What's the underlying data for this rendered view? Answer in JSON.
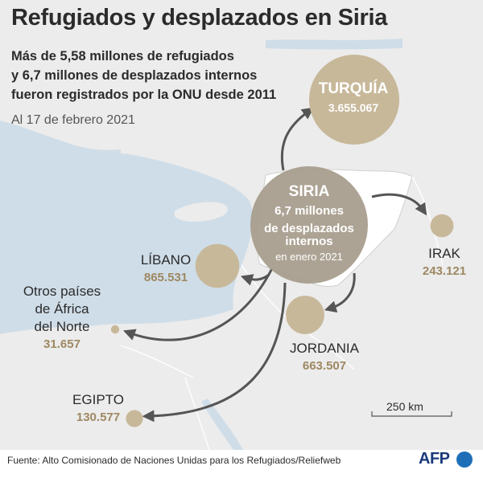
{
  "title": "Refugiados y desplazados en Siria",
  "subtitle_lines": [
    "Más de 5,58 millones de refugiados",
    "y 6,7 millones de desplazados internos",
    "fueron registrados por la ONU desde 2011"
  ],
  "date_note": "Al 17 de febrero 2021",
  "syria": {
    "name": "SIRIA",
    "line1": "6,7 millones",
    "line2": "de desplazados",
    "line3": "internos",
    "line4": "en enero 2021"
  },
  "destinations": [
    {
      "id": "turquia",
      "name": "TURQUÍA",
      "value": "3.655.067",
      "refugees": 3655067
    },
    {
      "id": "libano",
      "name": "LÍBANO",
      "value": "865.531",
      "refugees": 865531
    },
    {
      "id": "jordania",
      "name": "JORDANIA",
      "value": "663.507",
      "refugees": 663507
    },
    {
      "id": "irak",
      "name": "IRAK",
      "value": "243.121",
      "refugees": 243121
    },
    {
      "id": "egipto",
      "name": "EGIPTO",
      "value": "130.577",
      "refugees": 130577
    },
    {
      "id": "africa",
      "name_lines": [
        "Otros países",
        "de África",
        "del Norte"
      ],
      "value": "31.657",
      "refugees": 31657
    }
  ],
  "scale_label": "250 km",
  "source": "Fuente: Alto Comisionado de Naciones Unidas para los Refugiados/Reliefweb",
  "logo_text": "AFP",
  "colors": {
    "sea": "#cfdde8",
    "land": "#ececec",
    "syria": "#ffffff",
    "circle": "#c8b89a",
    "syria_circle": "#a99e8e",
    "value_text": "#9e8862",
    "arrow": "#555555"
  }
}
